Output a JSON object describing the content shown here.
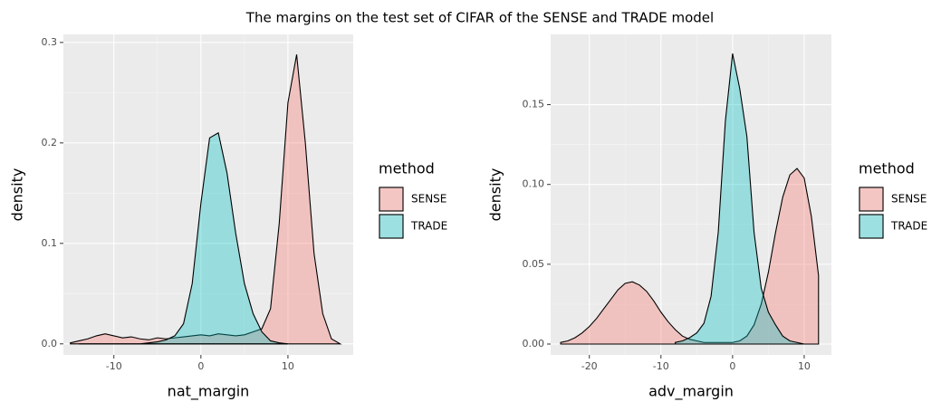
{
  "title": "The margins on the test set of CIFAR of the SENSE and TRADE model",
  "chart_data": [
    {
      "type": "area",
      "x_label": "nat_margin",
      "y_label": "density",
      "legend_title": "method",
      "x": [
        -15,
        -14,
        -13,
        -12,
        -11,
        -10,
        -9,
        -8,
        -7,
        -6,
        -5,
        -4,
        -3,
        -2,
        -1,
        0,
        1,
        2,
        3,
        4,
        5,
        6,
        7,
        8,
        9,
        10,
        11,
        12,
        13,
        14,
        15,
        16
      ],
      "series": [
        {
          "name": "SENSE",
          "color": "#F8766D",
          "values": [
            0.001,
            0.003,
            0.005,
            0.008,
            0.01,
            0.008,
            0.006,
            0.007,
            0.005,
            0.004,
            0.006,
            0.005,
            0.006,
            0.007,
            0.008,
            0.009,
            0.008,
            0.01,
            0.009,
            0.008,
            0.009,
            0.012,
            0.015,
            0.035,
            0.12,
            0.24,
            0.288,
            0.2,
            0.09,
            0.03,
            0.005,
            0
          ]
        },
        {
          "name": "TRADE",
          "color": "#00BFC4",
          "values": [
            null,
            0,
            0,
            0,
            0,
            0,
            0,
            0,
            0,
            0.001,
            0.002,
            0.004,
            0.008,
            0.02,
            0.06,
            0.14,
            0.205,
            0.21,
            0.17,
            0.11,
            0.06,
            0.03,
            0.012,
            0.003,
            0.001,
            0,
            null,
            null,
            null,
            null,
            null,
            null
          ]
        }
      ],
      "xlim": [
        -15.8,
        17.5
      ],
      "ylim": [
        -0.011,
        0.308
      ],
      "xticks": [
        -10,
        0,
        10
      ],
      "yticks": [
        {
          "value": 0,
          "label": "0.0"
        },
        0.1,
        0.2,
        0.3
      ],
      "grid": true
    },
    {
      "type": "area",
      "x_label": "adv_margin",
      "y_label": "density",
      "legend_title": "method",
      "x": [
        -24,
        -23,
        -22,
        -21,
        -20,
        -19,
        -18,
        -17,
        -16,
        -15,
        -14,
        -13,
        -12,
        -11,
        -10,
        -9,
        -8,
        -7,
        -6,
        -5,
        -4,
        -3,
        -2,
        -1,
        0,
        1,
        2,
        3,
        4,
        5,
        6,
        7,
        8,
        9,
        10,
        11,
        12
      ],
      "series": [
        {
          "name": "SENSE",
          "color": "#F8766D",
          "values": [
            0.001,
            0.002,
            0.004,
            0.007,
            0.011,
            0.016,
            0.022,
            0.028,
            0.034,
            0.038,
            0.039,
            0.037,
            0.033,
            0.027,
            0.02,
            0.014,
            0.009,
            0.005,
            0.003,
            0.002,
            0.001,
            0.001,
            0.001,
            0.001,
            0.001,
            0.002,
            0.005,
            0.012,
            0.025,
            0.045,
            0.07,
            0.092,
            0.106,
            0.11,
            0.104,
            0.08,
            0.043
          ]
        },
        {
          "name": "TRADE",
          "color": "#00BFC4",
          "values": [
            null,
            null,
            null,
            null,
            null,
            null,
            null,
            null,
            null,
            null,
            null,
            null,
            null,
            null,
            null,
            null,
            0.001,
            0.002,
            0.004,
            0.007,
            0.013,
            0.03,
            0.07,
            0.14,
            0.182,
            0.16,
            0.13,
            0.07,
            0.035,
            0.02,
            0.012,
            0.005,
            0.002,
            0.001,
            0,
            null,
            null
          ]
        }
      ],
      "xlim": [
        -25.4,
        13.8
      ],
      "ylim": [
        -0.0068,
        0.194
      ],
      "xticks": [
        -20,
        -10,
        0,
        10
      ],
      "yticks": [
        {
          "value": 0,
          "label": "0.00"
        },
        {
          "value": 0.05,
          "label": "0.05"
        },
        {
          "value": 0.1,
          "label": "0.10"
        },
        {
          "value": 0.15,
          "label": "0.15"
        }
      ],
      "grid": true
    }
  ]
}
